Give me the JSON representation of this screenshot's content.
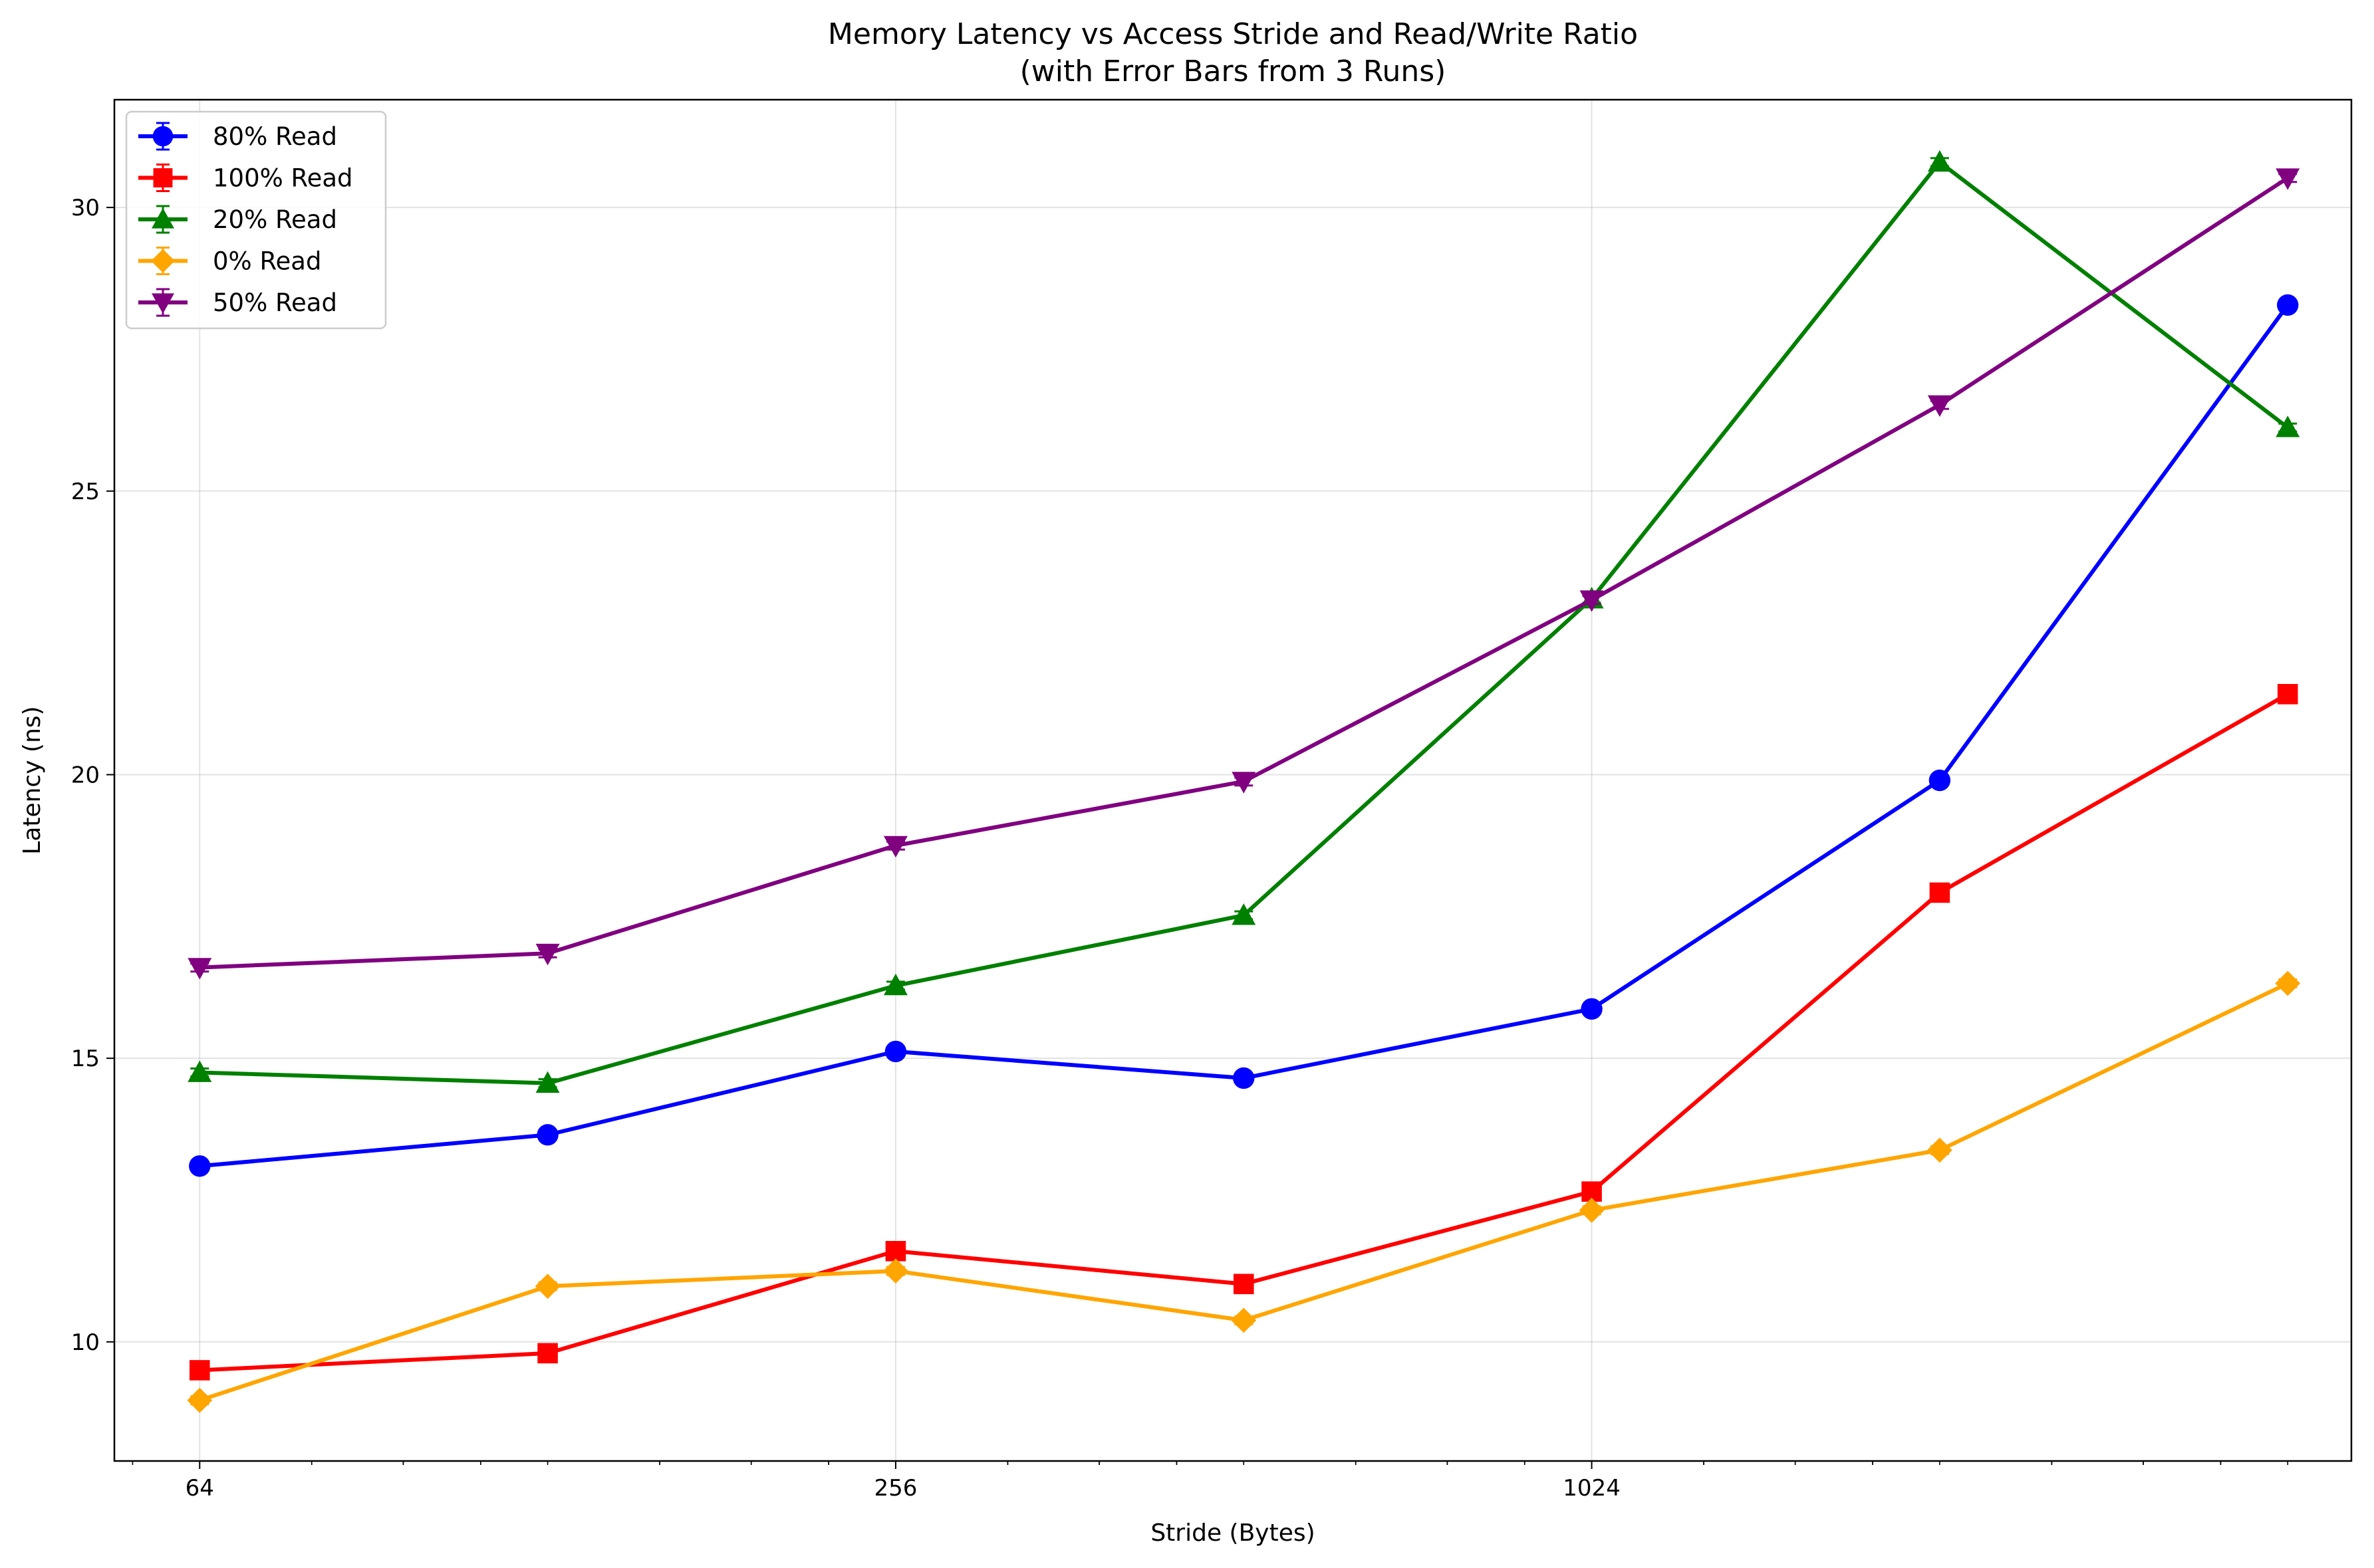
{
  "chart_data": {
    "type": "line",
    "title": "Memory Latency vs Access Stride and Read/Write Ratio",
    "subtitle": "(with Error Bars from 3 Runs)",
    "xlabel": "Stride (Bytes)",
    "ylabel": "Latency (ns)",
    "x_scale": "log2",
    "x": [
      64,
      128,
      256,
      512,
      1024,
      2048,
      4096
    ],
    "x_ticks": [
      64,
      256,
      1024
    ],
    "x_tick_labels": [
      "64",
      "256",
      "1024"
    ],
    "xlim": [
      54,
      4650
    ],
    "y_ticks": [
      10,
      15,
      20,
      25,
      30
    ],
    "y_tick_labels": [
      "10",
      "15",
      "20",
      "25",
      "30"
    ],
    "ylim": [
      7.9,
      31.9
    ],
    "grid": true,
    "legend_position": "top-left",
    "series": [
      {
        "name": "80% Read",
        "color": "#0000ff",
        "marker": "circle",
        "values": [
          13.1,
          13.65,
          15.12,
          14.65,
          15.87,
          19.9,
          28.28
        ]
      },
      {
        "name": "100% Read",
        "color": "#ff0000",
        "marker": "square",
        "values": [
          9.5,
          9.8,
          11.6,
          11.02,
          12.65,
          17.92,
          21.42
        ]
      },
      {
        "name": "20% Read",
        "color": "#008000",
        "marker": "triangle-up",
        "values": [
          14.75,
          14.56,
          16.28,
          17.52,
          23.1,
          30.8,
          26.12
        ]
      },
      {
        "name": "0% Read",
        "color": "#ffa500",
        "marker": "diamond",
        "values": [
          8.97,
          10.98,
          11.25,
          10.38,
          12.32,
          13.38,
          16.32
        ]
      },
      {
        "name": "50% Read",
        "color": "#800080",
        "marker": "triangle-down",
        "values": [
          16.6,
          16.85,
          18.75,
          19.88,
          23.08,
          26.52,
          30.52
        ]
      }
    ]
  }
}
